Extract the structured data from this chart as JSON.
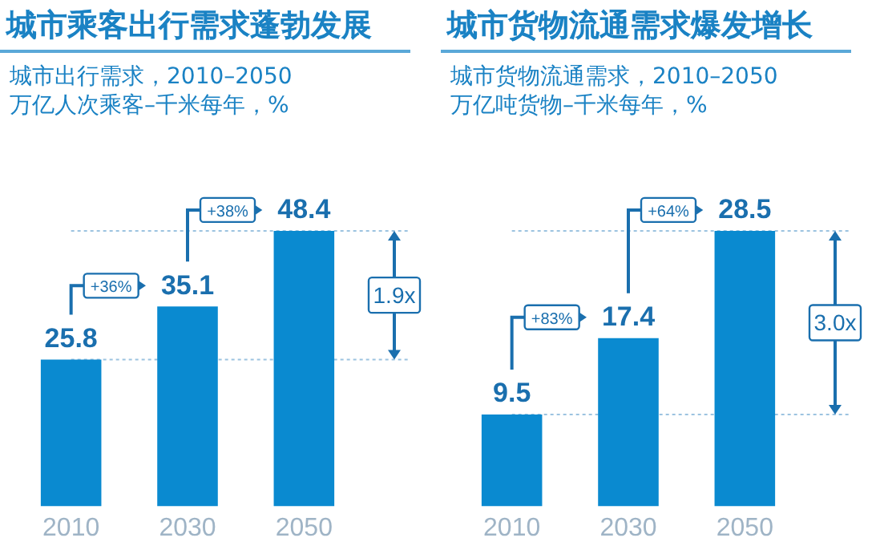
{
  "chart_data": [
    {
      "type": "bar",
      "title": "城市乘客出行需求蓬勃发展",
      "subtitle": "城市出行需求，2010–2050\n万亿人次乘客–千米每年，%",
      "categories": [
        "2010",
        "2030",
        "2050"
      ],
      "values": [
        25.8,
        35.1,
        48.4
      ],
      "color": "#0a8ad0",
      "data_labels": true,
      "tick_labels": "x",
      "annotations": [
        "+36%",
        "+38%",
        "1.9x"
      ],
      "ref_lines": [
        {
          "axis": "y",
          "value": 25.8,
          "color": "#9cc3e0",
          "line_style": "dotted"
        },
        {
          "axis": "y",
          "value": 48.4,
          "color": "#9cc3e0",
          "line_style": "dotted"
        }
      ]
    },
    {
      "type": "bar",
      "title": "城市货物流通需求爆发增长",
      "subtitle": "城市货物流通需求，2010–2050\n万亿吨货物–千米每年，%",
      "categories": [
        "2010",
        "2030",
        "2050"
      ],
      "values": [
        9.5,
        17.4,
        28.5
      ],
      "color": "#0a8ad0",
      "data_labels": true,
      "tick_labels": "x",
      "annotations": [
        "+83%",
        "+64%",
        "3.0x"
      ],
      "ref_lines": [
        {
          "axis": "y",
          "value": 9.5,
          "color": "#9cc3e0",
          "line_style": "dotted"
        },
        {
          "axis": "y",
          "value": 28.5,
          "color": "#9cc3e0",
          "line_style": "dotted"
        }
      ]
    }
  ]
}
